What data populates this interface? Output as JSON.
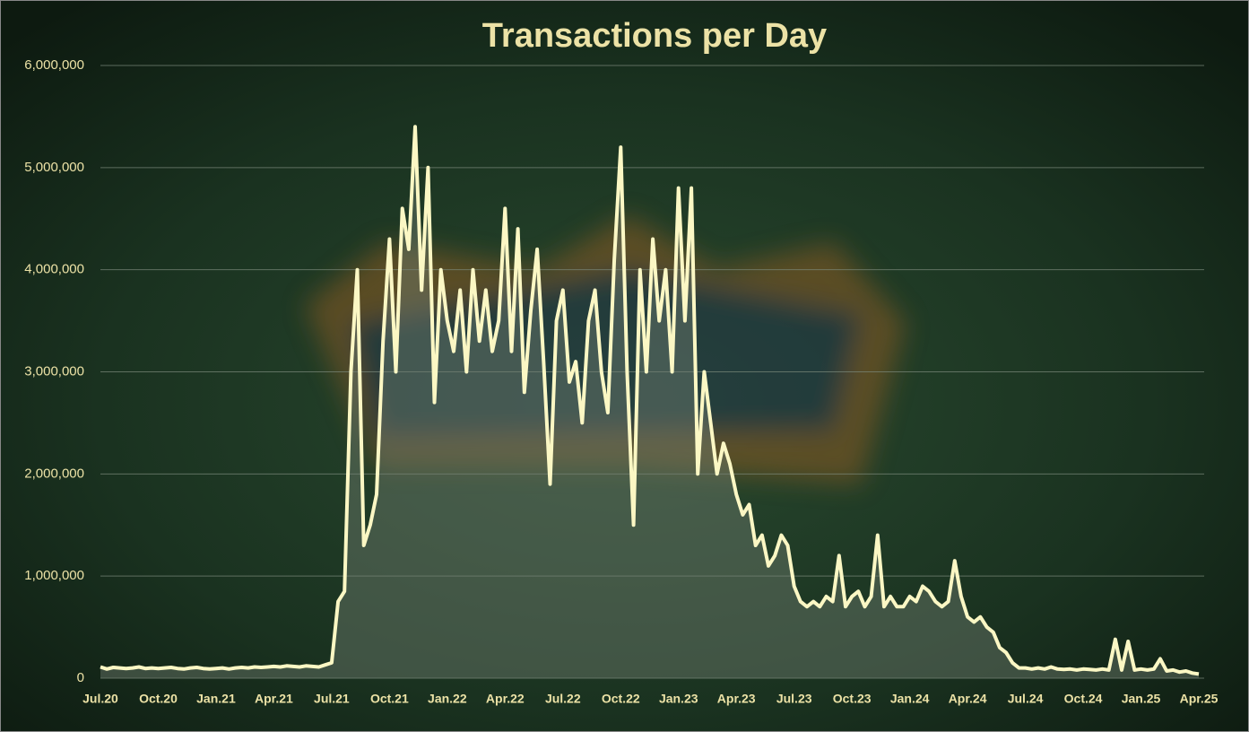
{
  "chart_data": {
    "type": "line",
    "title": "Transactions per Day",
    "categories": [
      "Jul.20",
      null,
      null,
      null,
      null,
      null,
      null,
      null,
      null,
      "Oct.20",
      null,
      null,
      null,
      null,
      null,
      null,
      null,
      null,
      "Jan.21",
      null,
      null,
      null,
      null,
      null,
      null,
      null,
      null,
      "Apr.21",
      null,
      null,
      null,
      null,
      null,
      null,
      null,
      null,
      "Jul.21",
      null,
      null,
      null,
      null,
      null,
      null,
      null,
      null,
      "Oct.21",
      null,
      null,
      null,
      null,
      null,
      null,
      null,
      null,
      "Jan.22",
      null,
      null,
      null,
      null,
      null,
      null,
      null,
      null,
      "Apr.22",
      null,
      null,
      null,
      null,
      null,
      null,
      null,
      null,
      "Jul.22",
      null,
      null,
      null,
      null,
      null,
      null,
      null,
      null,
      "Oct.22",
      null,
      null,
      null,
      null,
      null,
      null,
      null,
      null,
      "Jan.23",
      null,
      null,
      null,
      null,
      null,
      null,
      null,
      null,
      "Apr.23",
      null,
      null,
      null,
      null,
      null,
      null,
      null,
      null,
      "Jul.23",
      null,
      null,
      null,
      null,
      null,
      null,
      null,
      null,
      "Oct.23",
      null,
      null,
      null,
      null,
      null,
      null,
      null,
      null,
      "Jan.24",
      null,
      null,
      null,
      null,
      null,
      null,
      null,
      null,
      "Apr.24",
      null,
      null,
      null,
      null,
      null,
      null,
      null,
      null,
      "Jul.24",
      null,
      null,
      null,
      null,
      null,
      null,
      null,
      null,
      "Oct.24",
      null,
      null,
      null,
      null,
      null,
      null,
      null,
      null,
      "Jan.25",
      null,
      null,
      null,
      null,
      null,
      null,
      null,
      null,
      "Apr.25"
    ],
    "series": [
      {
        "name": "Transactions",
        "color": "#fbf7c4",
        "values": [
          110000,
          90000,
          105000,
          100000,
          95000,
          100000,
          110000,
          95000,
          100000,
          95000,
          100000,
          105000,
          95000,
          90000,
          100000,
          105000,
          95000,
          90000,
          95000,
          100000,
          90000,
          100000,
          105000,
          100000,
          110000,
          105000,
          110000,
          115000,
          110000,
          120000,
          115000,
          110000,
          120000,
          115000,
          110000,
          130000,
          150000,
          750000,
          850000,
          3000000,
          4000000,
          1300000,
          1500000,
          1800000,
          3300000,
          4300000,
          3000000,
          4600000,
          4200000,
          5400000,
          3800000,
          5000000,
          2700000,
          4000000,
          3500000,
          3200000,
          3800000,
          3000000,
          4000000,
          3300000,
          3800000,
          3200000,
          3500000,
          4600000,
          3200000,
          4400000,
          2800000,
          3600000,
          4200000,
          3100000,
          1900000,
          3500000,
          3800000,
          2900000,
          3100000,
          2500000,
          3500000,
          3800000,
          3000000,
          2600000,
          4100000,
          5200000,
          3000000,
          1500000,
          4000000,
          3000000,
          4300000,
          3500000,
          4000000,
          3000000,
          4800000,
          3500000,
          4800000,
          2000000,
          3000000,
          2500000,
          2000000,
          2300000,
          2100000,
          1800000,
          1600000,
          1700000,
          1300000,
          1400000,
          1100000,
          1200000,
          1400000,
          1300000,
          900000,
          750000,
          700000,
          750000,
          700000,
          800000,
          750000,
          1200000,
          700000,
          800000,
          850000,
          700000,
          800000,
          1400000,
          700000,
          800000,
          700000,
          700000,
          800000,
          750000,
          900000,
          850000,
          750000,
          700000,
          750000,
          1150000,
          800000,
          600000,
          550000,
          600000,
          500000,
          450000,
          300000,
          250000,
          150000,
          100000,
          100000,
          90000,
          100000,
          90000,
          110000,
          90000,
          85000,
          90000,
          80000,
          90000,
          85000,
          80000,
          90000,
          80000,
          380000,
          80000,
          360000,
          80000,
          90000,
          80000,
          90000,
          190000,
          70000,
          80000,
          60000,
          70000,
          50000,
          40000
        ]
      }
    ],
    "ylim": [
      0,
      6000000
    ],
    "yticks": [
      0,
      {
        "value": 1000000,
        "label": "1,000,000"
      },
      {
        "value": 2000000,
        "label": "2,000,000"
      },
      {
        "value": 3000000,
        "label": "3,000,000"
      },
      {
        "value": 4000000,
        "label": "4,000,000"
      },
      {
        "value": 5000000,
        "label": "5,000,000"
      },
      {
        "value": 6000000,
        "label": "6,000,000"
      }
    ],
    "grid": true
  }
}
